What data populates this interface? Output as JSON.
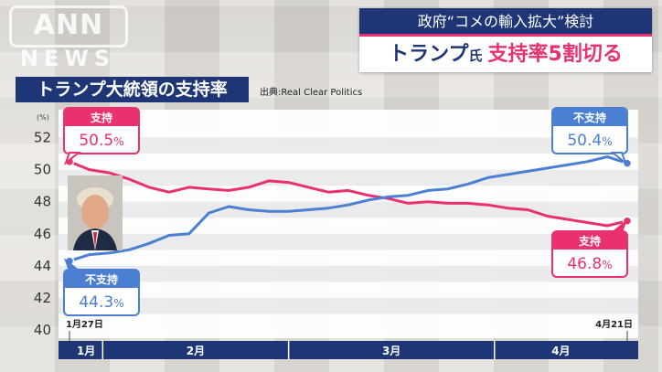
{
  "watermark": {
    "logo": "ANN",
    "sub": "NEWS"
  },
  "headline": {
    "top": "政府“コメの輸入拡大”検討",
    "name": "トランプ",
    "suffix": "氏",
    "highlight": "支持率5割切る"
  },
  "chart_title": "トランプ大統領の支持率",
  "source": "出典:Real Clear Politics",
  "colors": {
    "approve": "#e8316e",
    "disapprove": "#4a7fd1",
    "navy": "#1e3675"
  },
  "chart_data": {
    "type": "line",
    "title": "トランプ大統領の支持率",
    "unit": "(%)",
    "ylim": [
      40,
      53
    ],
    "yticks": [
      "40",
      "42",
      "44",
      "46",
      "48",
      "50",
      "52"
    ],
    "x_range": [
      "2025-01-27",
      "2025-04-21"
    ],
    "months": [
      {
        "label": "1月",
        "start": "2025-01-27",
        "end": "2025-02-01"
      },
      {
        "label": "2月",
        "start": "2025-02-01",
        "end": "2025-03-01"
      },
      {
        "label": "3月",
        "start": "2025-03-01",
        "end": "2025-04-01"
      },
      {
        "label": "4月",
        "start": "2025-04-01",
        "end": "2025-04-21"
      }
    ],
    "start_label": "1月27日",
    "end_label": "4月21日",
    "series": [
      {
        "name": "支持",
        "x": [
          "2025-01-27",
          "2025-01-30",
          "2025-02-02",
          "2025-02-05",
          "2025-02-08",
          "2025-02-11",
          "2025-02-14",
          "2025-02-17",
          "2025-02-20",
          "2025-02-23",
          "2025-02-26",
          "2025-03-01",
          "2025-03-04",
          "2025-03-07",
          "2025-03-10",
          "2025-03-13",
          "2025-03-16",
          "2025-03-19",
          "2025-03-22",
          "2025-03-25",
          "2025-03-28",
          "2025-03-31",
          "2025-04-03",
          "2025-04-06",
          "2025-04-09",
          "2025-04-12",
          "2025-04-15",
          "2025-04-18",
          "2025-04-21"
        ],
        "values": [
          50.5,
          50.0,
          49.8,
          49.4,
          48.9,
          48.6,
          48.9,
          48.8,
          48.7,
          48.9,
          49.3,
          49.2,
          48.9,
          48.6,
          48.7,
          48.4,
          48.2,
          47.9,
          48.0,
          47.9,
          47.9,
          47.8,
          47.6,
          47.5,
          47.1,
          46.9,
          46.7,
          46.5,
          46.8
        ],
        "callout": {
          "label": "支持",
          "value": "50.5",
          "unit": "%"
        },
        "end_callout": {
          "label": "支持",
          "value": "46.8",
          "unit": "%"
        }
      },
      {
        "name": "不支持",
        "x": [
          "2025-01-27",
          "2025-01-30",
          "2025-02-02",
          "2025-02-05",
          "2025-02-08",
          "2025-02-11",
          "2025-02-14",
          "2025-02-17",
          "2025-02-20",
          "2025-02-23",
          "2025-02-26",
          "2025-03-01",
          "2025-03-04",
          "2025-03-07",
          "2025-03-10",
          "2025-03-13",
          "2025-03-16",
          "2025-03-19",
          "2025-03-22",
          "2025-03-25",
          "2025-03-28",
          "2025-03-31",
          "2025-04-03",
          "2025-04-06",
          "2025-04-09",
          "2025-04-12",
          "2025-04-15",
          "2025-04-18",
          "2025-04-21"
        ],
        "values": [
          44.3,
          44.7,
          44.8,
          45.0,
          45.4,
          45.9,
          46.0,
          47.3,
          47.7,
          47.5,
          47.4,
          47.4,
          47.5,
          47.6,
          47.8,
          48.1,
          48.3,
          48.4,
          48.7,
          48.8,
          49.1,
          49.5,
          49.7,
          49.9,
          50.1,
          50.3,
          50.5,
          50.8,
          50.4
        ],
        "callout": {
          "label": "不支持",
          "value": "44.3",
          "unit": "%"
        },
        "end_callout": {
          "label": "不支持",
          "value": "50.4",
          "unit": "%"
        }
      }
    ],
    "grid": true,
    "legend": "none"
  }
}
